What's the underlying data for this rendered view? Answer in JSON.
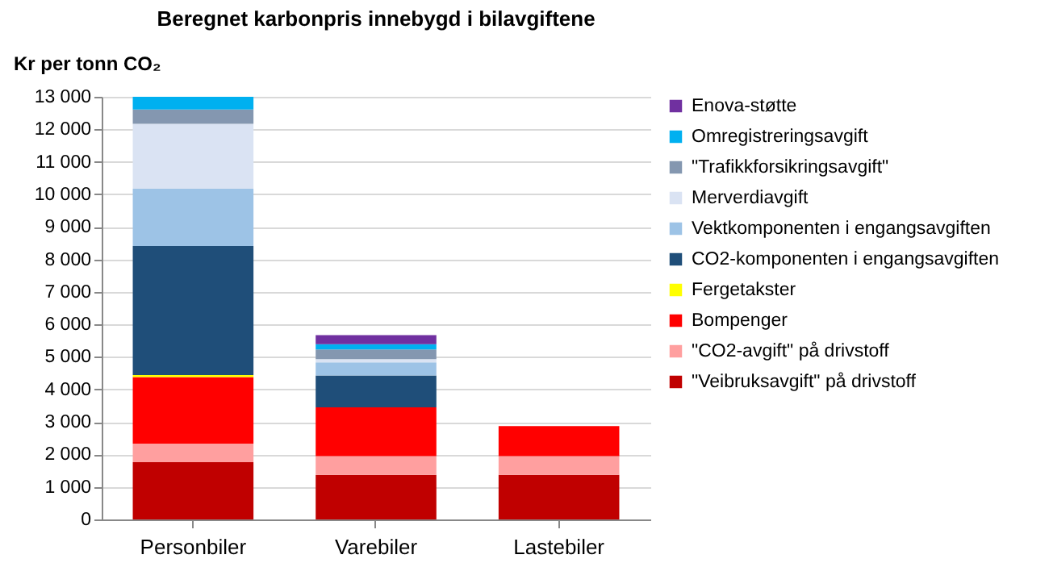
{
  "chart_data": {
    "type": "bar",
    "stacked": true,
    "title": "Beregnet karbonpris  innebygd i bilavgiftene",
    "ylabel": "Kr per tonn CO₂",
    "categories": [
      "Personbiler",
      "Varebiler",
      "Lastebiler"
    ],
    "series": [
      {
        "name": "\"Veibruksavgift\" på drivstoff",
        "color": "#c00000",
        "values": [
          1760,
          1370,
          1370
        ]
      },
      {
        "name": "\"CO2-avgift\" på drivstoff",
        "color": "#ff9f9f",
        "values": [
          570,
          580,
          580
        ]
      },
      {
        "name": "Bompenger",
        "color": "#ff0000",
        "values": [
          2050,
          1500,
          920
        ]
      },
      {
        "name": "Fergetakster",
        "color": "#ffff00",
        "values": [
          60,
          0,
          0
        ]
      },
      {
        "name": "CO2-komponenten i engangsavgiften",
        "color": "#1f4e79",
        "values": [
          3970,
          980,
          0
        ]
      },
      {
        "name": "Vektkomponenten i engangsavgiften",
        "color": "#9dc3e6",
        "values": [
          1760,
          400,
          0
        ]
      },
      {
        "name": "Merverdiavgift",
        "color": "#dae3f3",
        "values": [
          2000,
          100,
          0
        ]
      },
      {
        "name": "\"Trafikkforsikringsavgift\"",
        "color": "#8497b0",
        "values": [
          440,
          300,
          0
        ]
      },
      {
        "name": "Omregistreringsavgift",
        "color": "#00b0f0",
        "values": [
          390,
          160,
          0
        ]
      },
      {
        "name": "Enova-støtte",
        "color": "#7030a0",
        "values": [
          0,
          280,
          0
        ]
      }
    ],
    "ylim": [
      0,
      13000
    ],
    "yticks": [
      0,
      {
        "value": 1000,
        "label": "1 000"
      },
      {
        "value": 2000,
        "label": "2 000"
      },
      {
        "value": 3000,
        "label": "3 000"
      },
      {
        "value": 4000,
        "label": "4 000"
      },
      {
        "value": 5000,
        "label": "5 000"
      },
      {
        "value": 6000,
        "label": "6 000"
      },
      {
        "value": 7000,
        "label": "7 000"
      },
      {
        "value": 8000,
        "label": "8 000"
      },
      {
        "value": 9000,
        "label": "9 000"
      },
      {
        "value": 10000,
        "label": "10 000"
      },
      {
        "value": 11000,
        "label": "11 000"
      },
      {
        "value": 12000,
        "label": "12 000"
      },
      {
        "value": 13000,
        "label": "13 000"
      }
    ],
    "grid": "y",
    "legend": "right"
  }
}
